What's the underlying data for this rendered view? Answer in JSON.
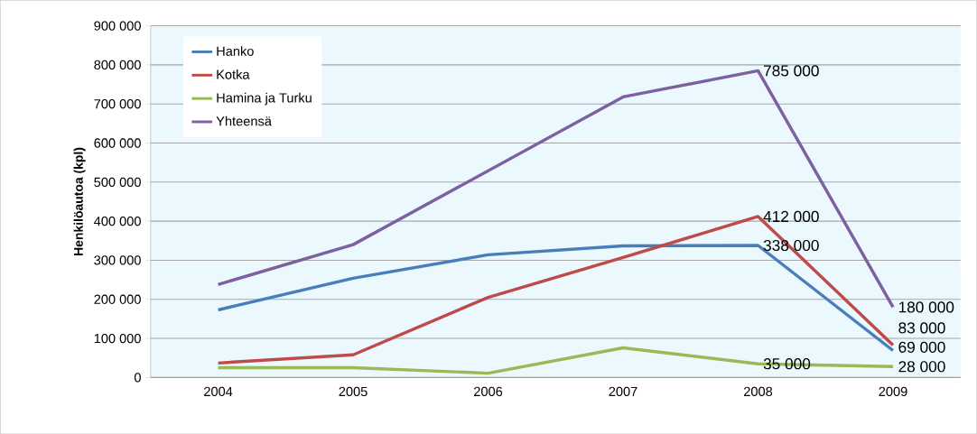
{
  "chart_data": {
    "type": "line",
    "ylabel": "Henkilöautoa (kpl)",
    "categories": [
      "2004",
      "2005",
      "2006",
      "2007",
      "2008",
      "2009"
    ],
    "ylim": [
      0,
      900000
    ],
    "yticks": [
      {
        "value": 0,
        "label": "0"
      },
      {
        "value": 100000,
        "label": "100 000"
      },
      {
        "value": 200000,
        "label": "200 000"
      },
      {
        "value": 300000,
        "label": "300 000"
      },
      {
        "value": 400000,
        "label": "400 000"
      },
      {
        "value": 500000,
        "label": "500 000"
      },
      {
        "value": 600000,
        "label": "600 000"
      },
      {
        "value": 700000,
        "label": "700 000"
      },
      {
        "value": 800000,
        "label": "800 000"
      },
      {
        "value": 900000,
        "label": "900 000"
      }
    ],
    "grid": "y",
    "legend": "top left",
    "marker": "none",
    "line_style": "solid",
    "series": [
      {
        "name": "Hanko",
        "color": "#4a7ebb",
        "values": [
          173000,
          254000,
          314000,
          337000,
          338000,
          69000
        ],
        "value_labels": [
          null,
          null,
          null,
          null,
          "338 000",
          "69 000"
        ]
      },
      {
        "name": "Kotka",
        "color": "#be4b48",
        "values": [
          37000,
          58000,
          205000,
          307000,
          412000,
          83000
        ],
        "value_labels": [
          null,
          null,
          null,
          null,
          "412 000",
          "83 000"
        ]
      },
      {
        "name": "Hamina ja Turku",
        "color": "#98b954",
        "values": [
          25000,
          25000,
          11000,
          76000,
          35000,
          28000
        ],
        "value_labels": [
          null,
          null,
          null,
          null,
          "35 000",
          "28 000"
        ]
      },
      {
        "name": "Yhteensä",
        "color": "#7d60a0",
        "values": [
          238000,
          340000,
          529000,
          718000,
          785000,
          180000
        ],
        "value_labels": [
          null,
          null,
          null,
          null,
          "785 000",
          "180 000"
        ]
      }
    ]
  }
}
